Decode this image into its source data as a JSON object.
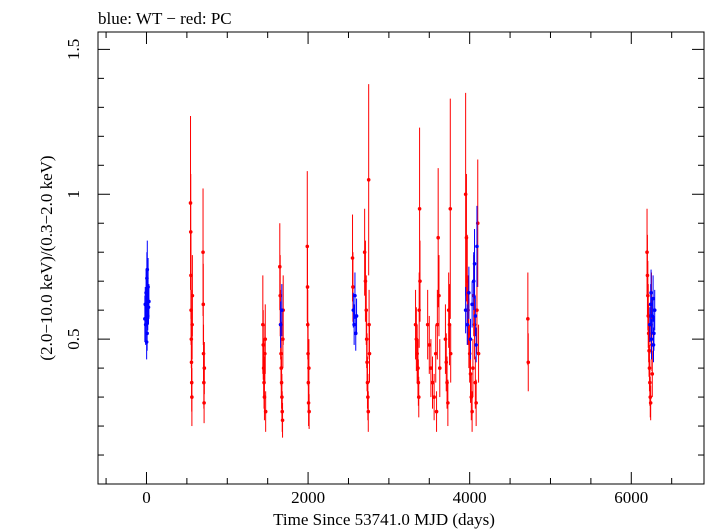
{
  "chart_data": {
    "type": "scatter",
    "title": "blue: WT − red: PC",
    "xlabel": "Time Since 53741.0 MJD (days)",
    "ylabel": "(2.0−10.0 keV)/(0.3−2.0 keV)",
    "xlim": [
      -600,
      6900
    ],
    "ylim": [
      0.0,
      1.56
    ],
    "x_major_ticks": [
      0,
      2000,
      4000,
      6000
    ],
    "x_minor_step": 500,
    "y_major_ticks": [
      0.5,
      1.0,
      1.5
    ],
    "y_tick_labels": [
      "0.5",
      "1",
      "1.5"
    ],
    "y_minor_step": 0.1,
    "grid": false,
    "legend": "none",
    "series": [
      {
        "name": "WT",
        "color": "#0000ff",
        "points": [
          [
            -15,
            0.62,
            0.06
          ],
          [
            -10,
            0.55,
            0.07
          ],
          [
            -5,
            0.66,
            0.08
          ],
          [
            0,
            0.6,
            0.05
          ],
          [
            5,
            0.71,
            0.09
          ],
          [
            8,
            0.52,
            0.06
          ],
          [
            12,
            0.64,
            0.07
          ],
          [
            16,
            0.58,
            0.05
          ],
          [
            20,
            0.68,
            0.1
          ],
          [
            25,
            0.61,
            0.06
          ],
          [
            -20,
            0.57,
            0.08
          ],
          [
            30,
            0.63,
            0.06
          ],
          [
            10,
            0.74,
            0.1
          ],
          [
            2,
            0.49,
            0.06
          ],
          [
            1660,
            0.55,
            0.08
          ],
          [
            1675,
            0.6,
            0.09
          ],
          [
            2560,
            0.6,
            0.06
          ],
          [
            2570,
            0.55,
            0.07
          ],
          [
            2580,
            0.65,
            0.08
          ],
          [
            2590,
            0.52,
            0.06
          ],
          [
            2600,
            0.58,
            0.06
          ],
          [
            3950,
            0.6,
            0.08
          ],
          [
            3970,
            0.55,
            0.07
          ],
          [
            3990,
            0.66,
            0.09
          ],
          [
            4010,
            0.5,
            0.07
          ],
          [
            4030,
            0.62,
            0.08
          ],
          [
            4050,
            0.7,
            0.1
          ],
          [
            4070,
            0.58,
            0.07
          ],
          [
            4080,
            0.48,
            0.06
          ],
          [
            4090,
            0.82,
            0.14
          ],
          [
            4060,
            0.76,
            0.12
          ],
          [
            6230,
            0.55,
            0.06
          ],
          [
            6240,
            0.62,
            0.07
          ],
          [
            6250,
            0.5,
            0.07
          ],
          [
            6260,
            0.58,
            0.06
          ],
          [
            6270,
            0.64,
            0.08
          ],
          [
            6280,
            0.52,
            0.06
          ],
          [
            6290,
            0.6,
            0.07
          ],
          [
            6245,
            0.66,
            0.08
          ],
          [
            6275,
            0.48,
            0.06
          ]
        ]
      },
      {
        "name": "PC",
        "color": "#ff0000",
        "points": [
          [
            545,
            0.97,
            0.3
          ],
          [
            548,
            0.87,
            0.2
          ],
          [
            550,
            0.72,
            0.15
          ],
          [
            552,
            0.6,
            0.12
          ],
          [
            555,
            0.5,
            0.1
          ],
          [
            557,
            0.42,
            0.12
          ],
          [
            560,
            0.35,
            0.1
          ],
          [
            562,
            0.3,
            0.1
          ],
          [
            565,
            0.55,
            0.12
          ],
          [
            568,
            0.65,
            0.14
          ],
          [
            700,
            0.8,
            0.22
          ],
          [
            703,
            0.62,
            0.14
          ],
          [
            706,
            0.45,
            0.1
          ],
          [
            710,
            0.35,
            0.09
          ],
          [
            713,
            0.28,
            0.07
          ],
          [
            716,
            0.4,
            0.09
          ],
          [
            1440,
            0.55,
            0.17
          ],
          [
            1445,
            0.48,
            0.12
          ],
          [
            1450,
            0.4,
            0.1
          ],
          [
            1455,
            0.35,
            0.09
          ],
          [
            1460,
            0.3,
            0.08
          ],
          [
            1465,
            0.45,
            0.1
          ],
          [
            1470,
            0.5,
            0.12
          ],
          [
            1475,
            0.25,
            0.07
          ],
          [
            1650,
            0.75,
            0.15
          ],
          [
            1655,
            0.65,
            0.14
          ],
          [
            1660,
            0.55,
            0.12
          ],
          [
            1665,
            0.45,
            0.11
          ],
          [
            1668,
            0.4,
            0.1
          ],
          [
            1672,
            0.35,
            0.09
          ],
          [
            1676,
            0.3,
            0.08
          ],
          [
            1680,
            0.25,
            0.07
          ],
          [
            1684,
            0.22,
            0.06
          ],
          [
            1688,
            0.5,
            0.1
          ],
          [
            1692,
            0.6,
            0.12
          ],
          [
            1990,
            0.82,
            0.26
          ],
          [
            1993,
            0.68,
            0.14
          ],
          [
            1996,
            0.55,
            0.12
          ],
          [
            2000,
            0.45,
            0.11
          ],
          [
            2003,
            0.35,
            0.1
          ],
          [
            2006,
            0.28,
            0.08
          ],
          [
            2010,
            0.4,
            0.1
          ],
          [
            2013,
            0.25,
            0.06
          ],
          [
            2550,
            0.78,
            0.15
          ],
          [
            2555,
            0.68,
            0.12
          ],
          [
            2700,
            0.8,
            0.15
          ],
          [
            2710,
            0.7,
            0.14
          ],
          [
            2720,
            0.6,
            0.12
          ],
          [
            2725,
            0.5,
            0.1
          ],
          [
            2730,
            0.42,
            0.1
          ],
          [
            2735,
            0.35,
            0.09
          ],
          [
            2740,
            0.3,
            0.08
          ],
          [
            2745,
            0.25,
            0.07
          ],
          [
            2750,
            1.05,
            0.33
          ],
          [
            2755,
            0.55,
            0.12
          ],
          [
            2760,
            0.45,
            0.1
          ],
          [
            3330,
            0.55,
            0.12
          ],
          [
            3340,
            0.5,
            0.11
          ],
          [
            3350,
            0.45,
            0.1
          ],
          [
            3360,
            0.4,
            0.1
          ],
          [
            3365,
            0.35,
            0.08
          ],
          [
            3370,
            0.3,
            0.07
          ],
          [
            3375,
            0.6,
            0.13
          ],
          [
            3380,
            0.95,
            0.28
          ],
          [
            3385,
            0.7,
            0.14
          ],
          [
            3480,
            0.55,
            0.12
          ],
          [
            3500,
            0.48,
            0.1
          ],
          [
            3520,
            0.4,
            0.1
          ],
          [
            3540,
            0.35,
            0.09
          ],
          [
            3560,
            0.3,
            0.08
          ],
          [
            3580,
            0.45,
            0.1
          ],
          [
            3590,
            0.25,
            0.07
          ],
          [
            3600,
            0.55,
            0.12
          ],
          [
            3610,
            0.85,
            0.24
          ],
          [
            3620,
            0.65,
            0.14
          ],
          [
            3630,
            0.4,
            0.1
          ],
          [
            3700,
            0.5,
            0.12
          ],
          [
            3710,
            0.42,
            0.1
          ],
          [
            3720,
            0.35,
            0.09
          ],
          [
            3730,
            0.28,
            0.08
          ],
          [
            3740,
            0.6,
            0.13
          ],
          [
            3750,
            0.55,
            0.14
          ],
          [
            3760,
            0.95,
            0.38
          ],
          [
            3765,
            0.45,
            0.1
          ],
          [
            3950,
            1.0,
            0.35
          ],
          [
            3960,
            0.85,
            0.22
          ],
          [
            3970,
            0.7,
            0.16
          ],
          [
            3980,
            0.6,
            0.12
          ],
          [
            3990,
            0.52,
            0.12
          ],
          [
            4000,
            0.45,
            0.1
          ],
          [
            4010,
            0.38,
            0.1
          ],
          [
            4020,
            0.3,
            0.08
          ],
          [
            4030,
            0.25,
            0.07
          ],
          [
            4040,
            0.4,
            0.1
          ],
          [
            4050,
            0.65,
            0.14
          ],
          [
            4060,
            0.55,
            0.12
          ],
          [
            4070,
            0.35,
            0.09
          ],
          [
            4080,
            0.28,
            0.08
          ],
          [
            4090,
            0.6,
            0.15
          ],
          [
            4100,
            0.9,
            0.22
          ],
          [
            4110,
            0.45,
            0.1
          ],
          [
            4720,
            0.57,
            0.16
          ],
          [
            4725,
            0.42,
            0.1
          ],
          [
            6200,
            0.72,
            0.14
          ],
          [
            6205,
            0.65,
            0.12
          ],
          [
            6210,
            0.58,
            0.11
          ],
          [
            6215,
            0.52,
            0.1
          ],
          [
            6220,
            0.46,
            0.09
          ],
          [
            6225,
            0.4,
            0.08
          ],
          [
            6230,
            0.35,
            0.08
          ],
          [
            6235,
            0.3,
            0.07
          ],
          [
            6240,
            0.28,
            0.06
          ],
          [
            6245,
            0.55,
            0.1
          ],
          [
            6250,
            0.62,
            0.11
          ],
          [
            6255,
            0.48,
            0.09
          ],
          [
            6260,
            0.38,
            0.08
          ],
          [
            6195,
            0.8,
            0.15
          ]
        ]
      }
    ]
  }
}
